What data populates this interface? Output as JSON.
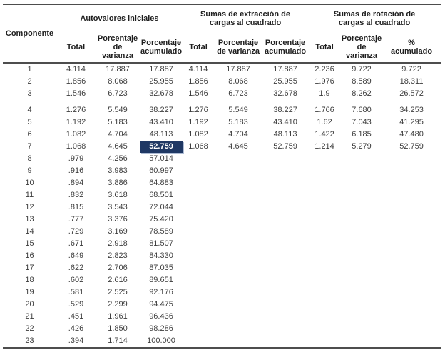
{
  "table": {
    "component_header": "Componente",
    "groups": [
      {
        "label": "Autovalores iniciales",
        "subcols": [
          "Total",
          "Porcentaje\nde\nvarianza",
          "Porcentaje\nacumulado"
        ]
      },
      {
        "label": "Sumas de extracción de\ncargas al cuadrado",
        "subcols": [
          "Total",
          "Porcentaje\nde varianza",
          "Porcentaje\nacumulado"
        ]
      },
      {
        "label": "Sumas de rotación de\ncargas al cuadrado",
        "subcols": [
          "Total",
          "Porcentaje\nde\nvarianza",
          "%\nacumulado"
        ]
      }
    ],
    "rows": [
      [
        "1",
        "4.114",
        "17.887",
        "17.887",
        "4.114",
        "17.887",
        "17.887",
        "2.236",
        "9.722",
        "9.722"
      ],
      [
        "2",
        "1.856",
        "8.068",
        "25.955",
        "1.856",
        "8.068",
        "25.955",
        "1.976",
        "8.589",
        "18.311"
      ],
      [
        "3",
        "1.546",
        "6.723",
        "32.678",
        "1.546",
        "6.723",
        "32.678",
        "1.9",
        "8.262",
        "26.572"
      ],
      [
        "4",
        "1.276",
        "5.549",
        "38.227",
        "1.276",
        "5.549",
        "38.227",
        "1.766",
        "7.680",
        "34.253"
      ],
      [
        "5",
        "1.192",
        "5.183",
        "43.410",
        "1.192",
        "5.183",
        "43.410",
        "1.62",
        "7.043",
        "41.295"
      ],
      [
        "6",
        "1.082",
        "4.704",
        "48.113",
        "1.082",
        "4.704",
        "48.113",
        "1.422",
        "6.185",
        "47.480"
      ],
      [
        "7",
        "1.068",
        "4.645",
        "52.759",
        "1.068",
        "4.645",
        "52.759",
        "1.214",
        "5.279",
        "52.759"
      ],
      [
        "8",
        ".979",
        "4.256",
        "57.014",
        "",
        "",
        "",
        "",
        "",
        ""
      ],
      [
        "9",
        ".916",
        "3.983",
        "60.997",
        "",
        "",
        "",
        "",
        "",
        ""
      ],
      [
        "10",
        ".894",
        "3.886",
        "64.883",
        "",
        "",
        "",
        "",
        "",
        ""
      ],
      [
        "11",
        ".832",
        "3.618",
        "68.501",
        "",
        "",
        "",
        "",
        "",
        ""
      ],
      [
        "12",
        ".815",
        "3.543",
        "72.044",
        "",
        "",
        "",
        "",
        "",
        ""
      ],
      [
        "13",
        ".777",
        "3.376",
        "75.420",
        "",
        "",
        "",
        "",
        "",
        ""
      ],
      [
        "14",
        ".729",
        "3.169",
        "78.589",
        "",
        "",
        "",
        "",
        "",
        ""
      ],
      [
        "15",
        ".671",
        "2.918",
        "81.507",
        "",
        "",
        "",
        "",
        "",
        ""
      ],
      [
        "16",
        ".649",
        "2.823",
        "84.330",
        "",
        "",
        "",
        "",
        "",
        ""
      ],
      [
        "17",
        ".622",
        "2.706",
        "87.035",
        "",
        "",
        "",
        "",
        "",
        ""
      ],
      [
        "18",
        ".602",
        "2.616",
        "89.651",
        "",
        "",
        "",
        "",
        "",
        ""
      ],
      [
        "19",
        ".581",
        "2.525",
        "92.176",
        "",
        "",
        "",
        "",
        "",
        ""
      ],
      [
        "20",
        ".529",
        "2.299",
        "94.475",
        "",
        "",
        "",
        "",
        "",
        ""
      ],
      [
        "21",
        ".451",
        "1.961",
        "96.436",
        "",
        "",
        "",
        "",
        "",
        ""
      ],
      [
        "22",
        ".426",
        "1.850",
        "98.286",
        "",
        "",
        "",
        "",
        "",
        ""
      ],
      [
        "23",
        ".394",
        "1.714",
        "100.000",
        "",
        "",
        "",
        "",
        "",
        ""
      ]
    ],
    "highlight": {
      "row_index": 6,
      "col_index": 3,
      "value": "52.759",
      "background": "#1f3864",
      "text_color": "#ffffff",
      "shadow_color": "#aebcd4"
    },
    "gap_before_row_index": 3
  }
}
